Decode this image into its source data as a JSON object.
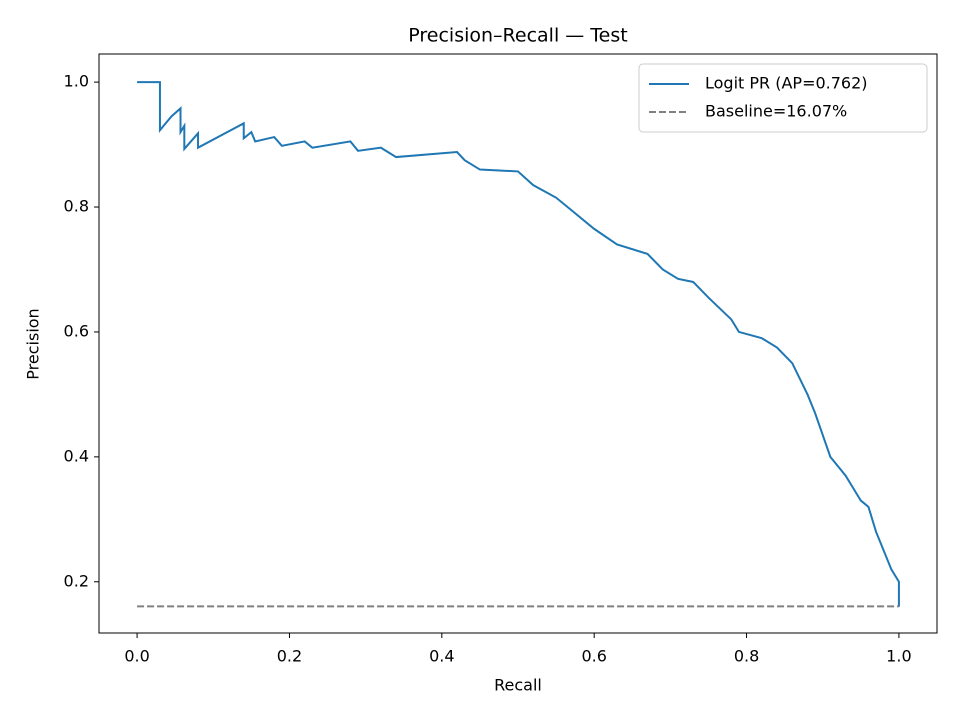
{
  "chart_data": {
    "type": "line",
    "title": "Precision–Recall — Test",
    "xlabel": "Recall",
    "ylabel": "Precision",
    "xlim": [
      -0.05,
      1.05
    ],
    "ylim": [
      0.118,
      1.045
    ],
    "xticks": [
      {
        "value": 0,
        "label": "0.0"
      },
      {
        "value": 0.2,
        "label": "0.2"
      },
      {
        "value": 0.4,
        "label": "0.4"
      },
      {
        "value": 0.6,
        "label": "0.6"
      },
      {
        "value": 0.8,
        "label": "0.8"
      },
      {
        "value": 1,
        "label": "1.0"
      }
    ],
    "yticks": [
      {
        "value": 0.2,
        "label": "0.2"
      },
      {
        "value": 0.4,
        "label": "0.4"
      },
      {
        "value": 0.6,
        "label": "0.6"
      },
      {
        "value": 0.8,
        "label": "0.8"
      },
      {
        "value": 1,
        "label": "1.0"
      }
    ],
    "grid": false,
    "legend": "upper right",
    "series": [
      {
        "name": "Logit PR (AP=0.762)",
        "color": "#1f77b4",
        "linestyle": "solid",
        "x": [
          0,
          0.03,
          0.03,
          0.045,
          0.057,
          0.057,
          0.062,
          0.062,
          0.08,
          0.08,
          0.14,
          0.14,
          0.15,
          0.155,
          0.18,
          0.19,
          0.22,
          0.23,
          0.28,
          0.29,
          0.32,
          0.34,
          0.42,
          0.43,
          0.45,
          0.5,
          0.52,
          0.55,
          0.57,
          0.6,
          0.63,
          0.67,
          0.69,
          0.71,
          0.73,
          0.75,
          0.78,
          0.79,
          0.82,
          0.84,
          0.86,
          0.87,
          0.88,
          0.89,
          0.91,
          0.93,
          0.95,
          0.96,
          0.97,
          0.98,
          0.99,
          1,
          1
        ],
        "values": [
          1,
          1,
          0.923,
          0.945,
          0.958,
          0.92,
          0.93,
          0.893,
          0.918,
          0.895,
          0.934,
          0.91,
          0.92,
          0.905,
          0.912,
          0.898,
          0.905,
          0.895,
          0.905,
          0.89,
          0.895,
          0.88,
          0.888,
          0.875,
          0.86,
          0.857,
          0.835,
          0.815,
          0.795,
          0.765,
          0.74,
          0.725,
          0.7,
          0.685,
          0.68,
          0.655,
          0.62,
          0.6,
          0.59,
          0.575,
          0.55,
          0.525,
          0.5,
          0.47,
          0.4,
          0.37,
          0.33,
          0.32,
          0.28,
          0.25,
          0.22,
          0.2,
          0.16
        ]
      },
      {
        "name": "Baseline=16.07%",
        "color": "#808080",
        "linestyle": "dashed",
        "x": [
          0,
          1
        ],
        "values": [
          0.1607,
          0.1607
        ]
      }
    ]
  }
}
